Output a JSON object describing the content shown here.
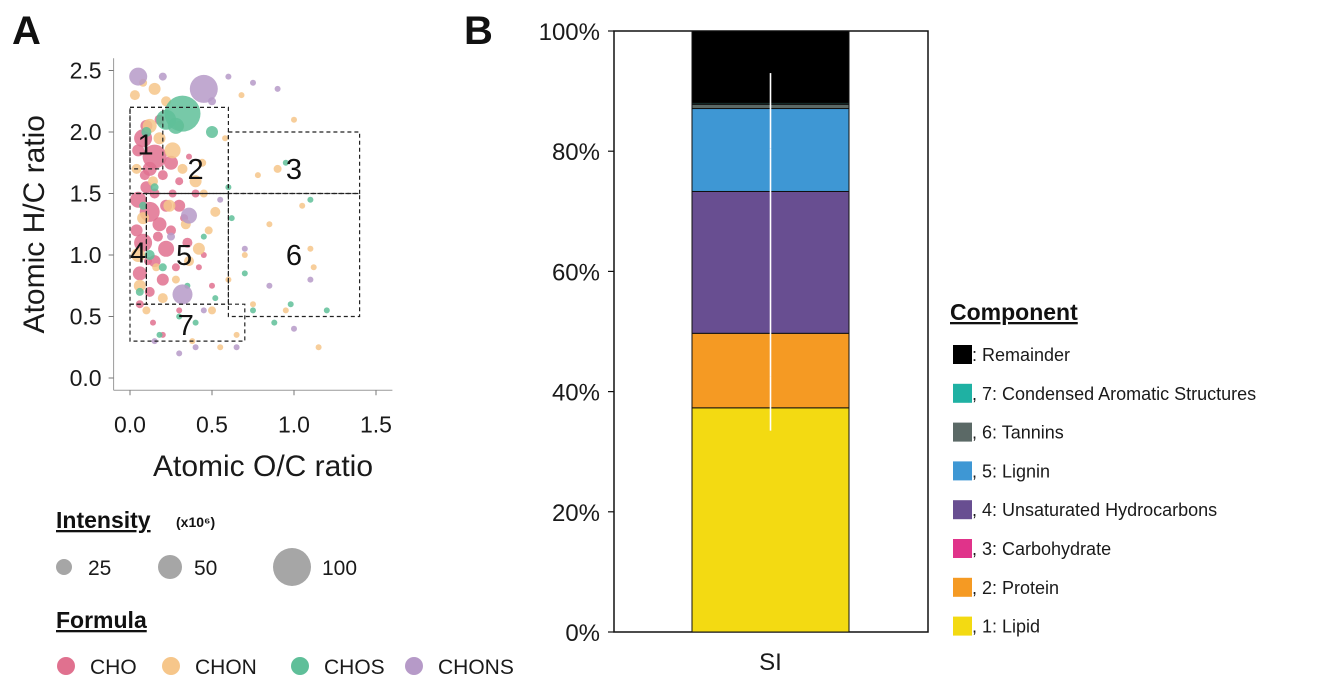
{
  "panel_a": {
    "letter": "A",
    "intensity_title": "Intensity",
    "intensity_unit": "(x10⁶)",
    "formula_title": "Formula"
  },
  "panel_b": {
    "letter": "B",
    "legend_title": "Component"
  },
  "chart_data": [
    {
      "type": "scatter",
      "xlabel": "Atomic O/C ratio",
      "ylabel": "Atomic H/C ratio",
      "xlim": [
        -0.1,
        1.6
      ],
      "ylim": [
        -0.1,
        2.6
      ],
      "xticks": [
        0.0,
        0.5,
        1.0,
        1.5
      ],
      "xtick_labels": [
        "0.0",
        "0.5",
        "1.0",
        "1.5"
      ],
      "yticks": [
        0.0,
        0.5,
        1.0,
        1.5,
        2.0,
        2.5
      ],
      "ytick_labels": [
        "0.0",
        "0.5",
        "1.0",
        "1.5",
        "2.0",
        "2.5"
      ],
      "grid": false,
      "regions": [
        {
          "label": "1",
          "x": [
            0.0,
            0.2
          ],
          "y": [
            1.7,
            2.2
          ]
        },
        {
          "label": "2",
          "x": [
            0.0,
            0.6
          ],
          "y": [
            1.5,
            2.2
          ]
        },
        {
          "label": "3",
          "x": [
            0.6,
            1.4
          ],
          "y": [
            1.5,
            2.0
          ]
        },
        {
          "label": "4",
          "x": [
            0.0,
            0.1
          ],
          "y": [
            0.6,
            1.5
          ]
        },
        {
          "label": "5",
          "x": [
            0.1,
            0.6
          ],
          "y": [
            0.6,
            1.5
          ]
        },
        {
          "label": "6",
          "x": [
            0.6,
            1.4
          ],
          "y": [
            0.5,
            1.5
          ]
        },
        {
          "label": "7",
          "x": [
            0.0,
            0.7
          ],
          "y": [
            0.3,
            0.6
          ]
        }
      ],
      "size_legend": {
        "title": "Intensity",
        "values": [
          25,
          50,
          100
        ]
      },
      "series": [
        {
          "name": "CHO",
          "color": "#e0718f",
          "points": [
            [
              0.05,
              1.85,
              6
            ],
            [
              0.08,
              1.95,
              9
            ],
            [
              0.12,
              1.7,
              7
            ],
            [
              0.15,
              1.8,
              12
            ],
            [
              0.2,
              1.65,
              5
            ],
            [
              0.1,
              1.55,
              6
            ],
            [
              0.05,
              1.45,
              8
            ],
            [
              0.12,
              1.35,
              10
            ],
            [
              0.18,
              1.25,
              7
            ],
            [
              0.08,
              1.1,
              9
            ],
            [
              0.15,
              0.95,
              6
            ],
            [
              0.22,
              1.05,
              8
            ],
            [
              0.25,
              1.2,
              5
            ],
            [
              0.3,
              1.4,
              6
            ],
            [
              0.06,
              0.85,
              7
            ],
            [
              0.12,
              0.7,
              5
            ],
            [
              0.2,
              0.8,
              6
            ],
            [
              0.28,
              0.9,
              4
            ],
            [
              0.35,
              1.1,
              5
            ],
            [
              0.4,
              1.5,
              4
            ],
            [
              0.1,
              2.05,
              6
            ],
            [
              0.18,
              2.1,
              5
            ],
            [
              0.25,
              1.75,
              7
            ],
            [
              0.3,
              1.6,
              4
            ],
            [
              0.04,
              1.2,
              6
            ],
            [
              0.15,
              1.5,
              5
            ],
            [
              0.22,
              1.4,
              6
            ],
            [
              0.09,
              1.65,
              5
            ],
            [
              0.33,
              1.3,
              4
            ],
            [
              0.45,
              1.0,
              3
            ],
            [
              0.5,
              0.75,
              3
            ],
            [
              0.06,
              0.6,
              4
            ],
            [
              0.14,
              0.45,
              3
            ],
            [
              0.2,
              0.35,
              3
            ],
            [
              0.3,
              0.55,
              3
            ],
            [
              0.26,
              1.5,
              4
            ],
            [
              0.17,
              1.15,
              5
            ],
            [
              0.11,
              0.95,
              4
            ],
            [
              0.36,
              1.8,
              3
            ],
            [
              0.42,
              0.9,
              3
            ]
          ]
        },
        {
          "name": "CHON",
          "color": "#f6c68a",
          "points": [
            [
              0.03,
              2.3,
              5
            ],
            [
              0.08,
              2.4,
              4
            ],
            [
              0.15,
              2.35,
              6
            ],
            [
              0.22,
              2.25,
              5
            ],
            [
              0.12,
              2.05,
              7
            ],
            [
              0.18,
              1.95,
              6
            ],
            [
              0.26,
              1.85,
              8
            ],
            [
              0.32,
              1.7,
              5
            ],
            [
              0.4,
              1.6,
              6
            ],
            [
              0.45,
              1.5,
              4
            ],
            [
              0.52,
              1.35,
              5
            ],
            [
              0.48,
              1.2,
              4
            ],
            [
              0.42,
              1.05,
              6
            ],
            [
              0.36,
              0.95,
              5
            ],
            [
              0.28,
              0.8,
              4
            ],
            [
              0.2,
              0.65,
              5
            ],
            [
              0.1,
              0.55,
              4
            ],
            [
              0.06,
              0.75,
              6
            ],
            [
              0.05,
              1.0,
              7
            ],
            [
              0.08,
              1.3,
              6
            ],
            [
              0.14,
              1.6,
              5
            ],
            [
              0.5,
              0.55,
              4
            ],
            [
              0.6,
              0.8,
              3
            ],
            [
              0.7,
              1.0,
              3
            ],
            [
              0.78,
              1.65,
              3
            ],
            [
              0.85,
              1.25,
              3
            ],
            [
              0.9,
              1.7,
              4
            ],
            [
              1.0,
              2.1,
              3
            ],
            [
              1.05,
              1.4,
              3
            ],
            [
              1.12,
              0.9,
              3
            ],
            [
              0.65,
              0.35,
              3
            ],
            [
              0.55,
              0.25,
              3
            ],
            [
              0.38,
              0.3,
              3
            ],
            [
              0.24,
              1.4,
              6
            ],
            [
              0.34,
              1.25,
              5
            ],
            [
              0.44,
              1.75,
              4
            ],
            [
              0.58,
              1.95,
              3
            ],
            [
              0.68,
              2.3,
              3
            ],
            [
              0.3,
              2.05,
              5
            ],
            [
              1.1,
              1.05,
              3
            ],
            [
              0.75,
              0.6,
              3
            ],
            [
              0.95,
              0.55,
              3
            ],
            [
              1.15,
              0.25,
              3
            ],
            [
              0.04,
              1.7,
              5
            ],
            [
              0.16,
              0.9,
              4
            ]
          ]
        },
        {
          "name": "CHOS",
          "color": "#5fbf99",
          "points": [
            [
              0.32,
              2.15,
              18
            ],
            [
              0.22,
              2.1,
              10
            ],
            [
              0.28,
              2.05,
              8
            ],
            [
              0.1,
              2.0,
              5
            ],
            [
              0.5,
              2.0,
              6
            ],
            [
              0.15,
              1.55,
              4
            ],
            [
              0.08,
              1.4,
              4
            ],
            [
              0.12,
              1.0,
              5
            ],
            [
              0.2,
              0.9,
              4
            ],
            [
              0.06,
              0.7,
              4
            ],
            [
              0.3,
              0.5,
              3
            ],
            [
              0.4,
              0.45,
              3
            ],
            [
              0.62,
              1.3,
              3
            ],
            [
              0.7,
              0.85,
              3
            ],
            [
              0.75,
              0.55,
              3
            ],
            [
              0.88,
              0.45,
              3
            ],
            [
              0.98,
              0.6,
              3
            ],
            [
              1.1,
              1.45,
              3
            ],
            [
              1.2,
              0.55,
              3
            ],
            [
              0.6,
              1.55,
              3
            ],
            [
              0.45,
              1.15,
              3
            ],
            [
              0.35,
              0.75,
              3
            ],
            [
              0.95,
              1.75,
              3
            ],
            [
              0.18,
              0.35,
              3
            ],
            [
              0.52,
              0.65,
              3
            ]
          ]
        },
        {
          "name": "CHONS",
          "color": "#b69ac8",
          "points": [
            [
              0.45,
              2.35,
              14
            ],
            [
              0.05,
              2.45,
              9
            ],
            [
              0.32,
              0.68,
              10
            ],
            [
              0.36,
              1.32,
              8
            ],
            [
              0.2,
              2.45,
              4
            ],
            [
              0.5,
              2.25,
              4
            ],
            [
              0.6,
              2.45,
              3
            ],
            [
              0.75,
              2.4,
              3
            ],
            [
              0.9,
              2.35,
              3
            ],
            [
              0.25,
              1.15,
              4
            ],
            [
              0.15,
              0.3,
              3
            ],
            [
              0.45,
              0.55,
              3
            ],
            [
              0.55,
              1.45,
              3
            ],
            [
              0.7,
              1.05,
              3
            ],
            [
              0.85,
              0.75,
              3
            ],
            [
              1.0,
              0.4,
              3
            ],
            [
              1.1,
              0.8,
              3
            ],
            [
              0.4,
              0.25,
              3
            ],
            [
              0.3,
              0.2,
              3
            ],
            [
              0.65,
              0.25,
              3
            ]
          ]
        }
      ]
    },
    {
      "type": "bar",
      "stacked": true,
      "categories": [
        "SI"
      ],
      "ylim": [
        0,
        100
      ],
      "yticks": [
        0,
        20,
        40,
        60,
        80,
        100
      ],
      "ytick_labels": [
        "0%",
        "20%",
        "40%",
        "60%",
        "80%",
        "100%"
      ],
      "legend_title": "Component",
      "legend_position": "right",
      "grid": false,
      "series": [
        {
          "name": ", 1: Lipid",
          "color": "#f3da12",
          "value": 37.3
        },
        {
          "name": ", 2: Protein",
          "color": "#f59a23",
          "value": 12.4
        },
        {
          "name": ", 3: Carbohydrate",
          "color": "#e0338a",
          "value": 0.0
        },
        {
          "name": ", 4: Unsaturated Hydrocarbons",
          "color": "#684e91",
          "value": 23.6
        },
        {
          "name": ", 5: Lignin",
          "color": "#3e97d4",
          "value": 13.8
        },
        {
          "name": ", 6: Tannins",
          "color": "#5b6966",
          "value": 0.7
        },
        {
          "name": ", 7: Condensed Aromatic Structures",
          "color": "#1fb1a3",
          "value": 0.2
        },
        {
          "name": ": Remainder",
          "color": "#000000",
          "value": 12.0
        }
      ],
      "error_bars": [
        {
          "at": 37.3,
          "low": 33.5,
          "high": 42.5
        },
        {
          "at": 49.7,
          "low": 42.5,
          "high": 55.0
        },
        {
          "at": 73.3,
          "low": 55.0,
          "high": 80.5
        },
        {
          "at": 88.0,
          "low": 80.5,
          "high": 93.0
        }
      ]
    }
  ]
}
